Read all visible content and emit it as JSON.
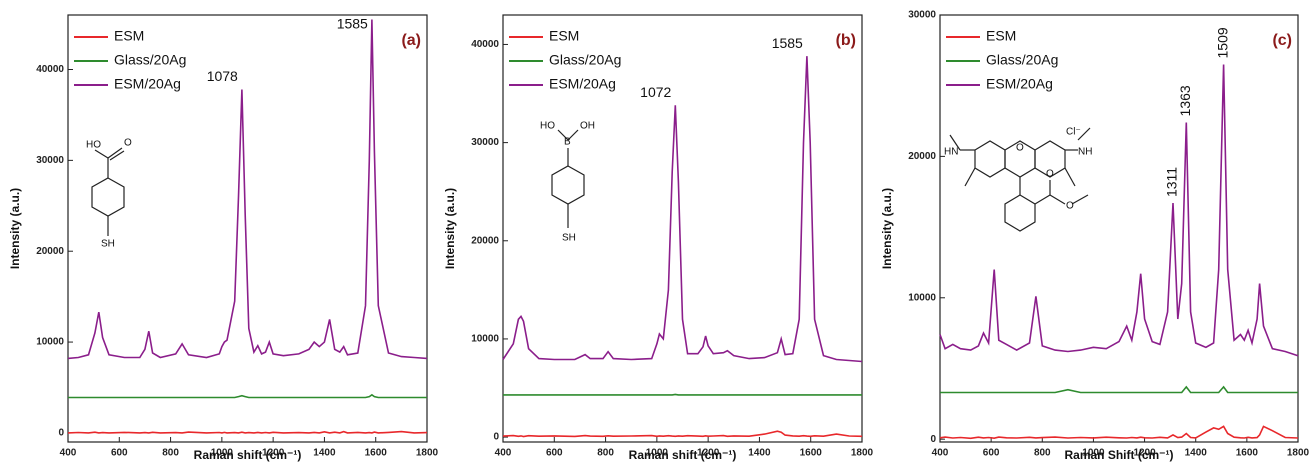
{
  "chart_data": [
    {
      "type": "line",
      "panel_label": "(a)",
      "x_label": "Raman shift (cm⁻¹)",
      "y_label": "Intensity (a.u.)",
      "xlim": [
        400,
        1800
      ],
      "ylim": [
        -1000,
        46000
      ],
      "xticks": [
        400,
        600,
        800,
        1000,
        1200,
        1400,
        1600,
        1800
      ],
      "yticks": [
        0,
        10000,
        20000,
        30000,
        40000
      ],
      "x": [
        400,
        440,
        480,
        505,
        520,
        535,
        560,
        620,
        680,
        700,
        715,
        730,
        760,
        820,
        845,
        870,
        940,
        990,
        1000,
        1010,
        1020,
        1050,
        1065,
        1078,
        1091,
        1105,
        1125,
        1140,
        1155,
        1170,
        1185,
        1200,
        1240,
        1300,
        1340,
        1360,
        1380,
        1400,
        1420,
        1440,
        1460,
        1475,
        1490,
        1530,
        1560,
        1575,
        1585,
        1595,
        1610,
        1650,
        1700,
        1750,
        1800
      ],
      "series": [
        {
          "name": "ESM",
          "color": "#e8282b",
          "values": [
            0,
            50,
            0,
            80,
            0,
            40,
            0,
            60,
            0,
            30,
            0,
            70,
            0,
            40,
            0,
            90,
            0,
            50,
            0,
            60,
            0,
            40,
            0,
            80,
            0,
            30,
            0,
            60,
            0,
            50,
            0,
            70,
            0,
            40,
            0,
            60,
            0,
            120,
            0,
            80,
            0,
            150,
            0,
            60,
            0,
            40,
            0,
            90,
            0,
            60,
            150,
            0,
            40
          ]
        },
        {
          "name": "Glass/20Ag",
          "color": "#2e8b2e",
          "values": [
            3900,
            3900,
            3900,
            3900,
            3900,
            3900,
            3900,
            3900,
            3900,
            3900,
            3900,
            3900,
            3900,
            3900,
            3900,
            3900,
            3900,
            3900,
            3900,
            3900,
            3900,
            3900,
            4000,
            4100,
            4000,
            3900,
            3900,
            3900,
            3900,
            3900,
            3900,
            3900,
            3900,
            3900,
            3900,
            3900,
            3900,
            3900,
            3900,
            3900,
            3900,
            3900,
            3900,
            3900,
            3900,
            4000,
            4200,
            4000,
            3900,
            3900,
            3900,
            3900,
            3900
          ]
        },
        {
          "name": "ESM/20Ag",
          "color": "#8b1e8b",
          "values": [
            8200,
            8300,
            8600,
            11000,
            13300,
            10500,
            8600,
            8300,
            8300,
            9200,
            11200,
            8800,
            8300,
            8700,
            9800,
            8600,
            8300,
            8700,
            9500,
            10000,
            10200,
            14500,
            26000,
            37800,
            24000,
            11500,
            8900,
            9600,
            8700,
            8900,
            10000,
            8700,
            8500,
            8700,
            9200,
            10000,
            9500,
            10000,
            12500,
            9200,
            8900,
            9500,
            8600,
            8800,
            14000,
            30000,
            45500,
            31000,
            14000,
            8800,
            8400,
            8300,
            8200
          ]
        }
      ],
      "peak_labels": [
        {
          "x": 1078,
          "y": 37800
        },
        {
          "x": 1585,
          "y": 45500
        }
      ],
      "structure_labels": [
        "HO",
        "O",
        "SH"
      ]
    },
    {
      "type": "line",
      "panel_label": "(b)",
      "x_label": "Raman shift (cm⁻¹)",
      "y_label": "Intensity (a.u.)",
      "xlim": [
        400,
        1800
      ],
      "ylim": [
        -500,
        43000
      ],
      "xticks": [
        400,
        600,
        800,
        1000,
        1200,
        1400,
        1600,
        1800
      ],
      "yticks": [
        0,
        10000,
        20000,
        30000,
        40000
      ],
      "x": [
        400,
        440,
        460,
        470,
        480,
        500,
        540,
        600,
        680,
        720,
        740,
        790,
        810,
        830,
        900,
        980,
        1000,
        1010,
        1025,
        1045,
        1060,
        1072,
        1084,
        1100,
        1120,
        1160,
        1180,
        1190,
        1200,
        1220,
        1260,
        1275,
        1300,
        1360,
        1420,
        1470,
        1485,
        1500,
        1530,
        1555,
        1572,
        1585,
        1598,
        1615,
        1650,
        1700,
        1750,
        1800
      ],
      "series": [
        {
          "name": "ESM",
          "color": "#e8282b",
          "values": [
            100,
            150,
            80,
            120,
            60,
            140,
            90,
            120,
            70,
            150,
            100,
            80,
            130,
            90,
            110,
            150,
            80,
            120,
            90,
            140,
            100,
            80,
            120,
            90,
            140,
            100,
            80,
            130,
            90,
            110,
            150,
            80,
            120,
            90,
            300,
            600,
            500,
            200,
            120,
            90,
            140,
            100,
            80,
            130,
            90,
            300,
            110,
            80
          ]
        },
        {
          "name": "Glass/20Ag",
          "color": "#2e8b2e",
          "values": [
            4300,
            4300,
            4300,
            4300,
            4300,
            4300,
            4300,
            4300,
            4300,
            4300,
            4300,
            4300,
            4300,
            4300,
            4300,
            4300,
            4300,
            4300,
            4300,
            4300,
            4300,
            4350,
            4300,
            4300,
            4300,
            4300,
            4300,
            4300,
            4300,
            4300,
            4300,
            4300,
            4300,
            4300,
            4300,
            4300,
            4300,
            4300,
            4300,
            4300,
            4300,
            4300,
            4300,
            4300,
            4300,
            4300,
            4300,
            4300
          ]
        },
        {
          "name": "ESM/20Ag",
          "color": "#8b1e8b",
          "values": [
            7900,
            9500,
            12000,
            12300,
            11800,
            9000,
            8000,
            7900,
            7900,
            8400,
            8000,
            8000,
            8700,
            8000,
            7900,
            8000,
            9500,
            10500,
            10000,
            15000,
            27000,
            33800,
            26000,
            12000,
            8500,
            8500,
            9200,
            10300,
            9300,
            8500,
            8600,
            8800,
            8300,
            8000,
            8100,
            8600,
            10000,
            8400,
            8500,
            12000,
            30000,
            38800,
            30000,
            12000,
            8300,
            7900,
            7800,
            7700
          ]
        }
      ],
      "peak_labels": [
        {
          "x": 1072,
          "y": 33800
        },
        {
          "x": 1585,
          "y": 38800
        }
      ],
      "structure_labels": [
        "HO",
        "B",
        "OH",
        "SH"
      ]
    },
    {
      "type": "line",
      "panel_label": "(c)",
      "x_label": "Raman Shift (cm⁻¹)",
      "y_label": "Intensity (a.u.)",
      "xlim": [
        400,
        1800
      ],
      "ylim": [
        -200,
        30000
      ],
      "xticks": [
        400,
        600,
        800,
        1000,
        1200,
        1400,
        1600,
        1800
      ],
      "yticks": [
        0,
        10000,
        20000,
        30000
      ],
      "x": [
        400,
        420,
        450,
        480,
        520,
        550,
        570,
        590,
        612,
        630,
        660,
        700,
        750,
        775,
        800,
        850,
        900,
        950,
        1000,
        1050,
        1100,
        1130,
        1150,
        1170,
        1185,
        1200,
        1230,
        1260,
        1290,
        1311,
        1330,
        1345,
        1363,
        1380,
        1400,
        1440,
        1470,
        1490,
        1509,
        1525,
        1550,
        1575,
        1590,
        1605,
        1620,
        1640,
        1650,
        1665,
        1700,
        1750,
        1800
      ],
      "series": [
        {
          "name": "ESM",
          "color": "#e8282b",
          "values": [
            100,
            150,
            80,
            120,
            60,
            140,
            90,
            120,
            70,
            150,
            100,
            80,
            130,
            90,
            110,
            150,
            80,
            120,
            90,
            140,
            100,
            80,
            120,
            90,
            140,
            100,
            80,
            130,
            90,
            300,
            110,
            150,
            400,
            120,
            90,
            500,
            800,
            700,
            900,
            400,
            140,
            100,
            80,
            130,
            90,
            110,
            300,
            900,
            600,
            120,
            80
          ]
        },
        {
          "name": "Glass/20Ag",
          "color": "#2e8b2e",
          "values": [
            3300,
            3300,
            3300,
            3300,
            3300,
            3300,
            3300,
            3300,
            3300,
            3300,
            3300,
            3300,
            3300,
            3300,
            3300,
            3300,
            3500,
            3300,
            3300,
            3300,
            3300,
            3300,
            3300,
            3300,
            3300,
            3300,
            3300,
            3300,
            3300,
            3300,
            3300,
            3300,
            3700,
            3300,
            3300,
            3300,
            3300,
            3300,
            3700,
            3300,
            3300,
            3300,
            3300,
            3300,
            3300,
            3300,
            3300,
            3300,
            3300,
            3300,
            3300
          ]
        },
        {
          "name": "ESM/20Ag",
          "color": "#8b1e8b",
          "values": [
            7400,
            6400,
            6700,
            6400,
            6300,
            6600,
            7500,
            6800,
            12000,
            7000,
            6700,
            6300,
            6800,
            10100,
            6600,
            6300,
            6200,
            6300,
            6500,
            6400,
            6900,
            8000,
            7000,
            9000,
            11700,
            8500,
            6900,
            6700,
            9000,
            16700,
            8500,
            11000,
            22400,
            9000,
            6800,
            6500,
            6800,
            12000,
            26500,
            12000,
            7000,
            7400,
            7000,
            7700,
            6800,
            8500,
            11000,
            8000,
            6400,
            6200,
            5900
          ]
        }
      ],
      "peak_labels": [
        {
          "x": 1311,
          "y": 16700
        },
        {
          "x": 1363,
          "y": 22400
        },
        {
          "x": 1509,
          "y": 26500
        }
      ],
      "structure_labels": [
        "HN",
        "O",
        "Cl⁻",
        "NH",
        "O",
        "O"
      ]
    }
  ]
}
